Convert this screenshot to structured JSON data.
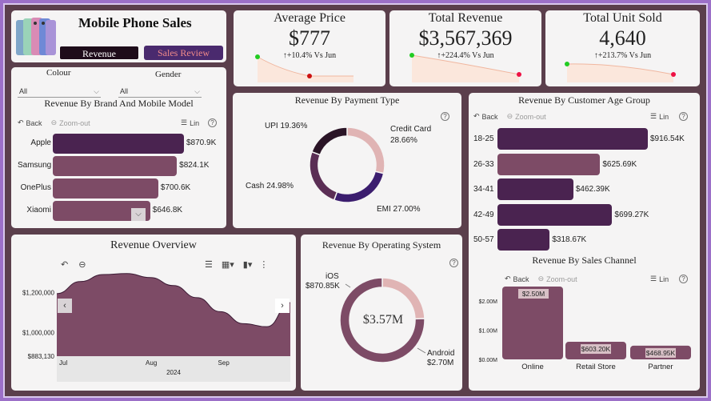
{
  "header": {
    "title": "Mobile Phone Sales",
    "nav_revenue": "Revenue",
    "nav_sales_review": "Sales Review"
  },
  "colors": {
    "frame": "#5b3f4c",
    "dark_purple": "#4a2350",
    "mauve": "#7d4b66",
    "deep_violet": "#3b1d5a",
    "pink_light": "#e0b4b4",
    "pink_text": "#e98b8b"
  },
  "kpis": [
    {
      "title": "Average Price",
      "value": "$777",
      "delta": "↑+10.4% Vs Jun"
    },
    {
      "title": "Total Revenue",
      "value": "$3,567,369",
      "delta": "↑+224.4% Vs Jun"
    },
    {
      "title": "Total Unit Sold",
      "value": "4,640",
      "delta": "↑+213.7% Vs Jun"
    }
  ],
  "filters": {
    "colour_label": "Colour",
    "colour_value": "All",
    "gender_label": "Gender",
    "gender_value": "All"
  },
  "toolbar": {
    "back": "Back",
    "zoom_out": "Zoom-out",
    "lin": "Lin",
    "help": "?"
  },
  "brand_chart": {
    "title": "Revenue By Brand And Mobile Model"
  },
  "payment_chart": {
    "title": "Revenue By Payment Type"
  },
  "age_chart": {
    "title": "Revenue By Customer Age Group"
  },
  "overview_chart": {
    "title": "Revenue Overview",
    "year_label": "2024"
  },
  "os_chart": {
    "title": "Revenue By Operating System",
    "center_value": "$3.57M"
  },
  "channel_chart": {
    "title": "Revenue By Sales Channel"
  },
  "chart_data": [
    {
      "type": "bar",
      "title": "Revenue By Brand And Mobile Model",
      "orientation": "horizontal",
      "categories": [
        "Apple",
        "Samsung",
        "OnePlus",
        "Xiaomi"
      ],
      "values": [
        870.9,
        824.1,
        700.6,
        646.8
      ],
      "value_labels": [
        "$870.9K",
        "$824.1K",
        "$700.6K",
        "$646.8K"
      ]
    },
    {
      "type": "pie",
      "title": "Revenue By Payment Type",
      "categories": [
        "Credit Card",
        "EMI",
        "Cash",
        "UPI"
      ],
      "values": [
        28.66,
        27.0,
        24.98,
        19.36
      ],
      "value_labels": [
        "28.66%",
        "27.00%",
        "24.98%",
        "19.36%"
      ],
      "colors": [
        "#e0b4b4",
        "#3b1d6e",
        "#5b2e55",
        "#2a1426"
      ]
    },
    {
      "type": "bar",
      "title": "Revenue By Customer Age Group",
      "orientation": "horizontal",
      "categories": [
        "18-25",
        "26-33",
        "34-41",
        "42-49",
        "50-57"
      ],
      "values": [
        916.54,
        625.69,
        462.39,
        699.27,
        318.67
      ],
      "value_labels": [
        "$916.54K",
        "$625.69K",
        "$462.39K",
        "$699.27K",
        "$318.67K"
      ]
    },
    {
      "type": "area",
      "title": "Revenue Overview",
      "x_ticks": [
        "Jul",
        "Aug",
        "Sep"
      ],
      "xlabel": "2024",
      "y_ticks": [
        "$1,200,000",
        "$1,000,000",
        "$883,130"
      ],
      "ylim": [
        883130,
        1310000
      ],
      "x": [
        0,
        0.1,
        0.2,
        0.3,
        0.4,
        0.5,
        0.6,
        0.7,
        0.8,
        0.9,
        1.0
      ],
      "values": [
        1195000,
        1255000,
        1290000,
        1295000,
        1275000,
        1235000,
        1175000,
        1105000,
        1045000,
        1030000,
        1150000
      ]
    },
    {
      "type": "pie",
      "title": "Revenue By Operating System",
      "categories": [
        "iOS",
        "Android"
      ],
      "values": [
        870.85,
        2700
      ],
      "value_labels": [
        "$870.85K",
        "$2.70M"
      ],
      "colors": [
        "#e0b4b4",
        "#7d4b66"
      ]
    },
    {
      "type": "bar",
      "title": "Revenue By Sales Channel",
      "categories": [
        "Online",
        "Retail Store",
        "Partner"
      ],
      "values": [
        2.5,
        0.6032,
        0.46895
      ],
      "value_labels": [
        "$2.50M",
        "$603.20K",
        "$468.95K"
      ],
      "y_ticks": [
        "$2.00M",
        "$1.00M",
        "$0.00M"
      ],
      "ylim": [
        0,
        2.5
      ]
    }
  ]
}
